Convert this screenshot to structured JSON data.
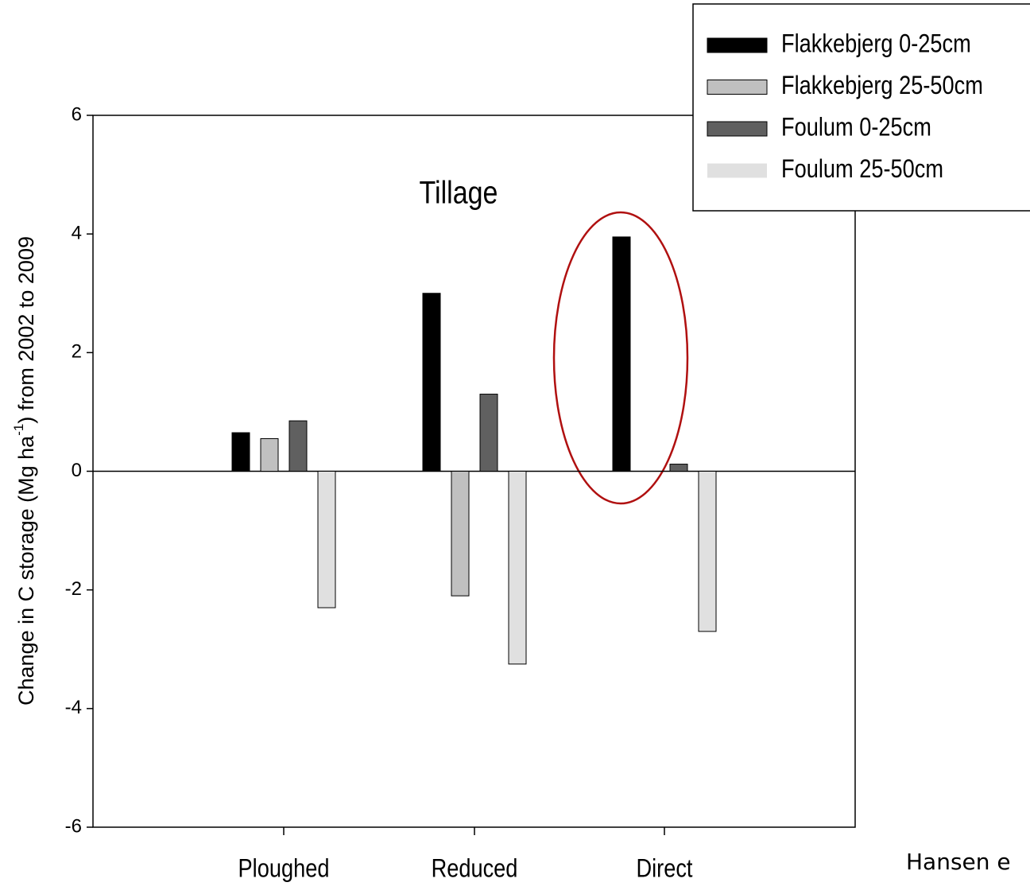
{
  "chart_data": {
    "type": "bar",
    "ylabel": {
      "main": "Change in C storage (Mg ha",
      "sup": "-1",
      "rest": ") from 2002 to 2009"
    },
    "annotations": [
      "Tillage",
      "Hansen e"
    ],
    "categories": [
      "Ploughed",
      "Reduced",
      "Direct"
    ],
    "series": [
      {
        "name": "Flakkebjerg 0-25cm",
        "color": "#000000",
        "values": [
          0.65,
          3.0,
          3.95
        ]
      },
      {
        "name": "Flakkebjerg 25-50cm",
        "color": "#c0c0c0",
        "values": [
          0.55,
          -2.1,
          null
        ]
      },
      {
        "name": "Foulum 0-25cm",
        "color": "#606060",
        "values": [
          0.85,
          1.3,
          0.12
        ]
      },
      {
        "name": "Foulum 25-50cm",
        "color": "#e0e0e0",
        "values": [
          -2.3,
          -3.25,
          -2.7
        ]
      }
    ],
    "ylim": [
      -6,
      6
    ],
    "yticks": [
      -6,
      -4,
      -2,
      0,
      2,
      4,
      6
    ],
    "legend": "upper right"
  }
}
